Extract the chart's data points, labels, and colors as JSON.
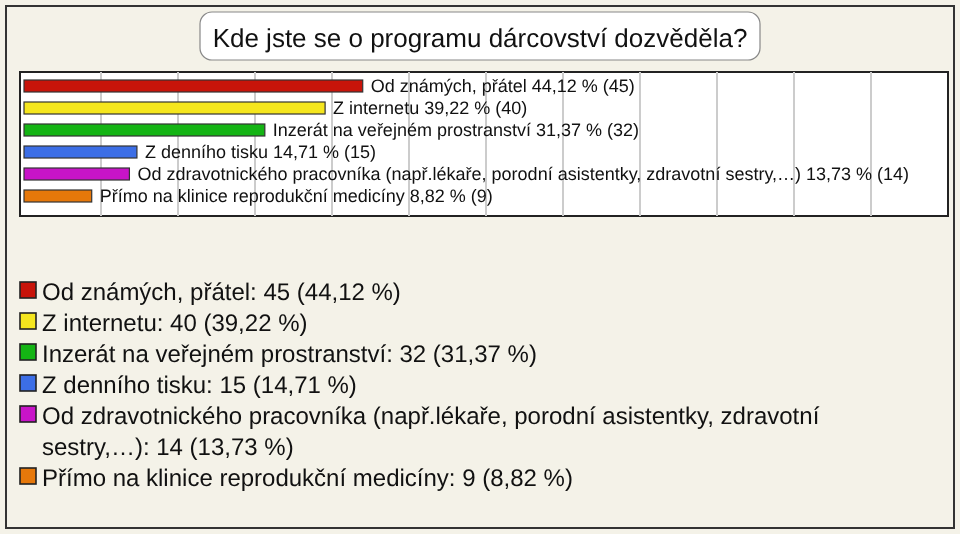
{
  "chart_data": {
    "type": "bar",
    "orientation": "horizontal",
    "title": "Kde jste se o programu dárcovství dozvěděla?",
    "categories": [
      null,
      null,
      null,
      null,
      null,
      null
    ],
    "values": [
      44.12,
      39.22,
      31.37,
      14.71,
      13.73,
      8.82
    ],
    "value_labels": [
      "Od známých, přátel 44,12 % (45)",
      "Z internetu 39,22 % (40)",
      "Inzerát na veřejném prostranství 31,37 % (32)",
      "Z denního tisku 14,71 % (15)",
      "Od zdravotnického pracovníka (např.lékaře, porodní asistentky, zdravotní sestry,…) 13,73 % (14)",
      "Přímo na klinice reprodukční medicíny 8,82 % (9)"
    ],
    "colors": [
      "#c8140a",
      "#f5e61e",
      "#14b414",
      "#3c6ee6",
      "#c814c8",
      "#e6780a"
    ],
    "grid": "x",
    "annotations": [
      "Od známých, přátel: 45 (44,12 %)",
      "Z internetu: 40 (39,22 %)",
      "Inzerát na veřejném prostranství: 32 (31,37 %)",
      "Z denního tisku: 15 (14,71 %)",
      "Od zdravotnického pracovníka (např.lékaře, porodní asistentky, zdravotní sestry,…): 14 (13,73 %)",
      "Přímo na klinice reprodukční medicíny: 9 (8,82 %)"
    ]
  }
}
